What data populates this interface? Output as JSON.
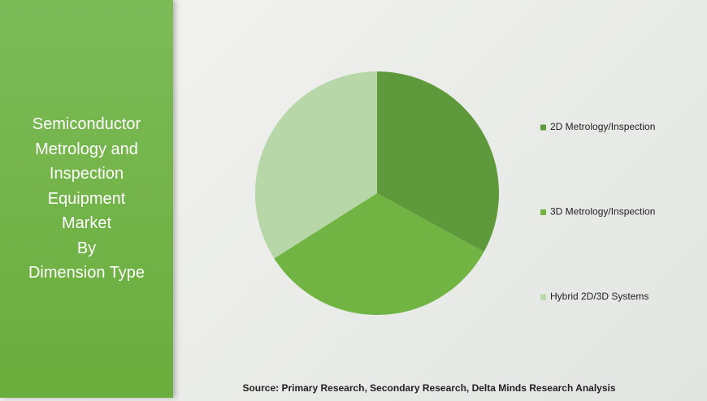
{
  "chart_data": {
    "type": "pie",
    "title": [
      "Semiconductor",
      "Metrology and",
      "Inspection",
      "Equipment",
      "Market",
      "By",
      "Dimension Type"
    ],
    "categories": [
      "2D Metrology/Inspection",
      "3D Metrology/Inspection",
      "Hybrid 2D/3D Systems"
    ],
    "values": [
      33,
      33,
      34
    ],
    "colors": [
      "#5e9a3c",
      "#72b443",
      "#b7d7a8"
    ],
    "source": "Source: Primary Research, Secondary Research, Delta Minds Research Analysis"
  }
}
